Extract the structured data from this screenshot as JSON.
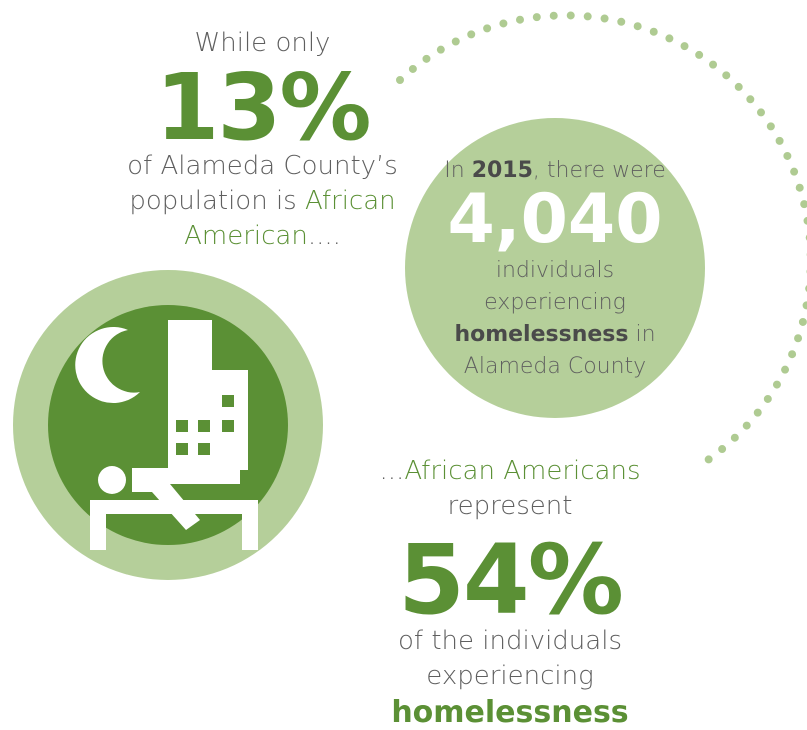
{
  "left": {
    "intro": "While only",
    "stat": "13%",
    "line1": "of Alameda County’s",
    "line2": "population is ",
    "line2_highlight": "African",
    "line3_highlight": "American",
    "line3_tail": "...."
  },
  "circle": {
    "prefix": "In ",
    "year": "2015",
    "suffix": ", there were",
    "stat": "4,040",
    "line1": "individuals",
    "line2": "experiencing",
    "line3_bold": "homelessness",
    "line3_tail": " in",
    "line4": "Alameda County"
  },
  "bottom": {
    "lead": "...",
    "highlight": "African Americans",
    "line1": "represent",
    "stat": "54%",
    "line2": "of the individuals",
    "line3": "experiencing",
    "line4": "homelessness"
  }
}
